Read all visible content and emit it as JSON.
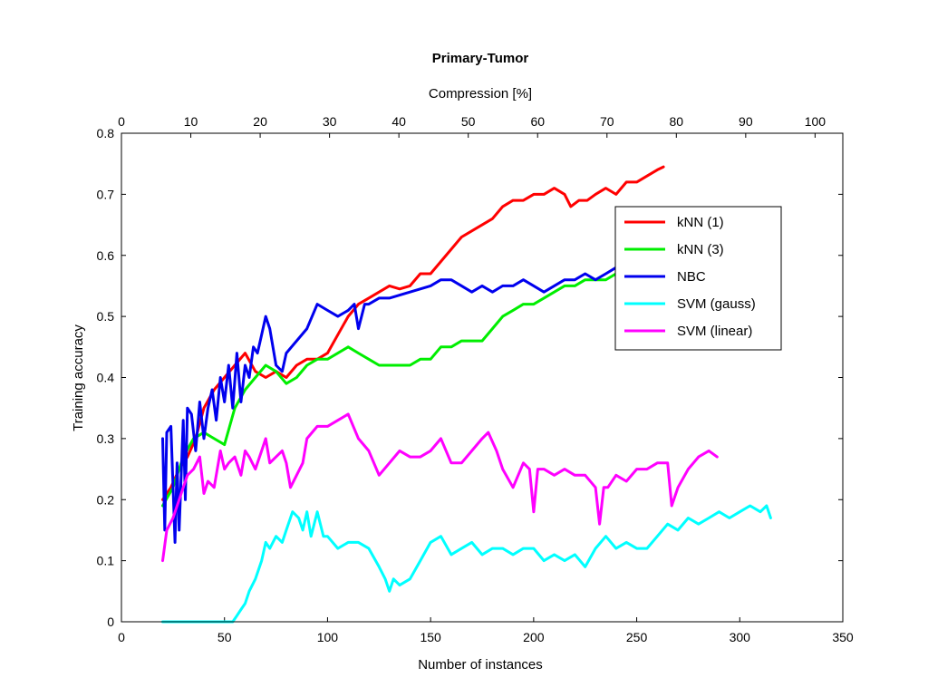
{
  "chart_data": {
    "type": "line",
    "title": "Primary-Tumor",
    "xlabel": "Number of instances",
    "ylabel": "Training accuracy",
    "x2label": "Compression [%]",
    "xlim": [
      0,
      350
    ],
    "ylim": [
      0,
      0.8
    ],
    "x2lim": [
      0,
      104
    ],
    "xticks": [
      0,
      50,
      100,
      150,
      200,
      250,
      300,
      350
    ],
    "yticks": [
      0,
      0.1,
      0.2,
      0.3,
      0.4,
      0.5,
      0.6,
      0.7,
      0.8
    ],
    "x2ticks": [
      0,
      10,
      20,
      30,
      40,
      50,
      60,
      70,
      80,
      90,
      100
    ],
    "grid": false,
    "legend_position": "upper-right",
    "series": [
      {
        "name": "kNN (1)",
        "color": "#ff0000",
        "x": [
          20,
          24,
          28,
          32,
          36,
          40,
          45,
          50,
          55,
          60,
          65,
          70,
          75,
          80,
          85,
          90,
          95,
          100,
          105,
          110,
          115,
          120,
          125,
          130,
          135,
          140,
          145,
          150,
          155,
          160,
          165,
          170,
          175,
          180,
          185,
          190,
          195,
          200,
          205,
          210,
          215,
          218,
          222,
          226,
          230,
          235,
          240,
          245,
          250,
          255,
          260,
          263
        ],
        "y": [
          0.2,
          0.22,
          0.25,
          0.27,
          0.3,
          0.35,
          0.38,
          0.4,
          0.42,
          0.44,
          0.41,
          0.4,
          0.41,
          0.4,
          0.42,
          0.43,
          0.43,
          0.44,
          0.47,
          0.5,
          0.52,
          0.53,
          0.54,
          0.55,
          0.545,
          0.55,
          0.57,
          0.57,
          0.59,
          0.61,
          0.63,
          0.64,
          0.65,
          0.66,
          0.68,
          0.69,
          0.69,
          0.7,
          0.7,
          0.71,
          0.7,
          0.68,
          0.69,
          0.69,
          0.7,
          0.71,
          0.7,
          0.72,
          0.72,
          0.73,
          0.74,
          0.745
        ]
      },
      {
        "name": "kNN (3)",
        "color": "#00ee00",
        "x": [
          20,
          25,
          30,
          35,
          40,
          45,
          50,
          55,
          60,
          65,
          70,
          75,
          80,
          85,
          90,
          95,
          100,
          105,
          110,
          115,
          120,
          125,
          130,
          135,
          140,
          145,
          150,
          155,
          160,
          165,
          170,
          175,
          180,
          185,
          190,
          195,
          200,
          205,
          210,
          215,
          220,
          225,
          230,
          235,
          240
        ],
        "y": [
          0.19,
          0.22,
          0.27,
          0.3,
          0.31,
          0.3,
          0.29,
          0.35,
          0.38,
          0.4,
          0.42,
          0.41,
          0.39,
          0.4,
          0.42,
          0.43,
          0.43,
          0.44,
          0.45,
          0.44,
          0.43,
          0.42,
          0.42,
          0.42,
          0.42,
          0.43,
          0.43,
          0.45,
          0.45,
          0.46,
          0.46,
          0.46,
          0.48,
          0.5,
          0.51,
          0.52,
          0.52,
          0.53,
          0.54,
          0.55,
          0.55,
          0.56,
          0.56,
          0.56,
          0.57
        ]
      },
      {
        "name": "NBC",
        "color": "#0000ee",
        "x": [
          20,
          21,
          22,
          24,
          26,
          27,
          28,
          30,
          31,
          32,
          34,
          36,
          38,
          40,
          42,
          44,
          46,
          48,
          50,
          52,
          54,
          56,
          58,
          60,
          62,
          64,
          66,
          68,
          70,
          72,
          75,
          78,
          80,
          85,
          90,
          95,
          100,
          105,
          110,
          113,
          115,
          118,
          120,
          125,
          130,
          140,
          150,
          155,
          160,
          165,
          170,
          175,
          180,
          185,
          190,
          195,
          200,
          205,
          210,
          215,
          220,
          225,
          230,
          235,
          240
        ],
        "y": [
          0.3,
          0.15,
          0.31,
          0.32,
          0.13,
          0.26,
          0.15,
          0.33,
          0.2,
          0.35,
          0.34,
          0.28,
          0.36,
          0.3,
          0.35,
          0.38,
          0.33,
          0.4,
          0.36,
          0.42,
          0.35,
          0.44,
          0.36,
          0.42,
          0.4,
          0.45,
          0.44,
          0.47,
          0.5,
          0.48,
          0.42,
          0.41,
          0.44,
          0.46,
          0.48,
          0.52,
          0.51,
          0.5,
          0.51,
          0.52,
          0.48,
          0.52,
          0.52,
          0.53,
          0.53,
          0.54,
          0.55,
          0.56,
          0.56,
          0.55,
          0.54,
          0.55,
          0.54,
          0.55,
          0.55,
          0.56,
          0.55,
          0.54,
          0.55,
          0.56,
          0.56,
          0.57,
          0.56,
          0.57,
          0.58
        ]
      },
      {
        "name": "SVM (gauss)",
        "color": "#00ffff",
        "x": [
          20,
          30,
          40,
          50,
          54,
          56,
          58,
          60,
          62,
          65,
          68,
          70,
          72,
          75,
          78,
          80,
          83,
          86,
          88,
          90,
          92,
          95,
          98,
          100,
          105,
          110,
          115,
          120,
          125,
          128,
          130,
          132,
          135,
          140,
          145,
          150,
          155,
          160,
          165,
          170,
          175,
          180,
          185,
          190,
          195,
          200,
          205,
          210,
          215,
          220,
          225,
          230,
          235,
          240,
          245,
          250,
          255,
          260,
          265,
          270,
          275,
          280,
          285,
          290,
          295,
          300,
          305,
          310,
          313,
          315
        ],
        "y": [
          0,
          0,
          0,
          0,
          0,
          0.01,
          0.02,
          0.03,
          0.05,
          0.07,
          0.1,
          0.13,
          0.12,
          0.14,
          0.13,
          0.15,
          0.18,
          0.17,
          0.15,
          0.18,
          0.14,
          0.18,
          0.14,
          0.14,
          0.12,
          0.13,
          0.13,
          0.12,
          0.09,
          0.07,
          0.05,
          0.07,
          0.06,
          0.07,
          0.1,
          0.13,
          0.14,
          0.11,
          0.12,
          0.13,
          0.11,
          0.12,
          0.12,
          0.11,
          0.12,
          0.12,
          0.1,
          0.11,
          0.1,
          0.11,
          0.09,
          0.12,
          0.14,
          0.12,
          0.13,
          0.12,
          0.12,
          0.14,
          0.16,
          0.15,
          0.17,
          0.16,
          0.17,
          0.18,
          0.17,
          0.18,
          0.19,
          0.18,
          0.19,
          0.17
        ]
      },
      {
        "name": "SVM (linear)",
        "color": "#ff00ff",
        "x": [
          20,
          22,
          25,
          28,
          30,
          32,
          35,
          38,
          40,
          42,
          45,
          48,
          50,
          52,
          55,
          58,
          60,
          62,
          65,
          68,
          70,
          72,
          75,
          78,
          80,
          82,
          85,
          88,
          90,
          95,
          100,
          105,
          110,
          115,
          120,
          125,
          130,
          135,
          140,
          145,
          150,
          155,
          160,
          165,
          170,
          175,
          178,
          182,
          185,
          190,
          195,
          198,
          200,
          202,
          205,
          210,
          215,
          220,
          225,
          230,
          232,
          234,
          236,
          240,
          245,
          250,
          255,
          260,
          265,
          267,
          270,
          275,
          280,
          285,
          289
        ],
        "y": [
          0.1,
          0.15,
          0.17,
          0.2,
          0.22,
          0.24,
          0.25,
          0.27,
          0.21,
          0.23,
          0.22,
          0.28,
          0.25,
          0.26,
          0.27,
          0.24,
          0.28,
          0.27,
          0.25,
          0.28,
          0.3,
          0.26,
          0.27,
          0.28,
          0.26,
          0.22,
          0.24,
          0.26,
          0.3,
          0.32,
          0.32,
          0.33,
          0.34,
          0.3,
          0.28,
          0.24,
          0.26,
          0.28,
          0.27,
          0.27,
          0.28,
          0.3,
          0.26,
          0.26,
          0.28,
          0.3,
          0.31,
          0.28,
          0.25,
          0.22,
          0.26,
          0.25,
          0.18,
          0.25,
          0.25,
          0.24,
          0.25,
          0.24,
          0.24,
          0.22,
          0.16,
          0.22,
          0.22,
          0.24,
          0.23,
          0.25,
          0.25,
          0.26,
          0.26,
          0.19,
          0.22,
          0.25,
          0.27,
          0.28,
          0.27
        ]
      }
    ]
  }
}
